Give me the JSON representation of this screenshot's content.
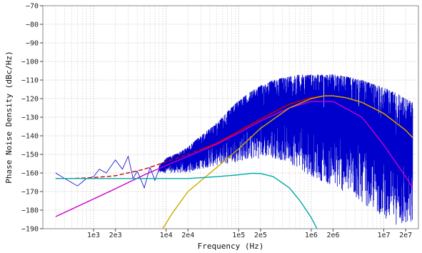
{
  "chart_data": {
    "type": "line",
    "title": "",
    "xlabel": "Frequency (Hz)",
    "ylabel": "Phase Noise Density (dBc/Hz)",
    "x_scale": "log",
    "xlim": [
      200,
      30000000
    ],
    "ylim": [
      -190,
      -70
    ],
    "x_ticks": [
      {
        "value": 1000,
        "label": "1e3"
      },
      {
        "value": 2000,
        "label": "2e3"
      },
      {
        "value": 10000,
        "label": "1e4"
      },
      {
        "value": 20000,
        "label": "2e4"
      },
      {
        "value": 100000,
        "label": "1e5"
      },
      {
        "value": 200000,
        "label": "2e5"
      },
      {
        "value": 1000000,
        "label": "1e6"
      },
      {
        "value": 2000000,
        "label": "2e6"
      },
      {
        "value": 10000000,
        "label": "1e7"
      },
      {
        "value": 20000000,
        "label": "2e7"
      }
    ],
    "y_ticks": [
      -70,
      -80,
      -90,
      -100,
      -110,
      -120,
      -130,
      -140,
      -150,
      -160,
      -170,
      -180,
      -190
    ],
    "y_tick_labels": [
      "−70",
      "−80",
      "−90",
      "−100",
      "−110",
      "−120",
      "−130",
      "−140",
      "−150",
      "−160",
      "−170",
      "−180",
      "−190"
    ],
    "grid": true,
    "series": [
      {
        "color": "#0000cc",
        "style": "noisy-measurement",
        "x": [
          300,
          400,
          600,
          800,
          1000,
          1200,
          1500,
          2000,
          2500,
          3000,
          3500,
          4000,
          5000,
          6000,
          7000,
          8000,
          10000,
          15000,
          20000,
          30000,
          50000,
          70000,
          100000,
          150000,
          200000,
          300000,
          500000,
          700000,
          1000000,
          1500000,
          2000000,
          3000000,
          5000000,
          7000000,
          10000000,
          15000000,
          20000000,
          25000000
        ],
        "center": [
          -160,
          -163,
          -167,
          -163,
          -162,
          -158,
          -160,
          -153,
          -158,
          -151,
          -163,
          -159,
          -168,
          -157,
          -164,
          -158,
          -155,
          -153,
          -151,
          -147,
          -141,
          -137,
          -132,
          -127,
          -124,
          -121,
          -119,
          -118,
          -118,
          -118,
          -118,
          -118,
          -119,
          -120,
          -122,
          -125,
          -128,
          -130
        ],
        "lower": [
          -160,
          -163,
          -167,
          -163,
          -162,
          -158,
          -160,
          -153,
          -158,
          -151,
          -163,
          -159,
          -168,
          -157,
          -164,
          -160,
          -160,
          -160,
          -160,
          -158,
          -156,
          -155,
          -154,
          -153,
          -152,
          -152,
          -155,
          -158,
          -162,
          -165,
          -168,
          -171,
          -176,
          -180,
          -184,
          -188,
          -190,
          -190
        ],
        "upper": [
          -160,
          -163,
          -167,
          -163,
          -162,
          -158,
          -160,
          -153,
          -158,
          -151,
          -163,
          -159,
          -168,
          -157,
          -164,
          -156,
          -152,
          -149,
          -146,
          -140,
          -133,
          -127,
          -121,
          -116,
          -113,
          -110,
          -108,
          -107,
          -107,
          -107,
          -107,
          -108,
          -110,
          -112,
          -114,
          -117,
          -120,
          -122
        ]
      },
      {
        "color": "#cc0000",
        "style": "total",
        "x": [
          300,
          500,
          1000,
          2000,
          5000,
          10000,
          20000,
          50000,
          100000,
          200000,
          500000,
          1000000,
          1500000,
          2000000,
          3000000,
          5000000,
          10000000,
          20000000,
          25000000
        ],
        "values": [
          -163,
          -163,
          -162.5,
          -161.5,
          -158,
          -154,
          -150,
          -144,
          -137.5,
          -131,
          -123,
          -119.5,
          -118.5,
          -118.5,
          -119.5,
          -122,
          -128,
          -137,
          -141
        ]
      },
      {
        "color": "#cc00cc",
        "style": "component",
        "x": [
          300,
          1000,
          2000,
          5000,
          10000,
          20000,
          50000,
          100000,
          200000,
          500000,
          1000000,
          2000000,
          5000000,
          10000000,
          20000000,
          25000000
        ],
        "values": [
          -183.5,
          -174,
          -168.5,
          -161,
          -156,
          -151,
          -144.5,
          -138.5,
          -132,
          -125,
          -121.5,
          -121.5,
          -130,
          -145,
          -162,
          -168
        ]
      },
      {
        "color": "#ccaa00",
        "style": "component",
        "x": [
          9000,
          12000,
          20000,
          50000,
          100000,
          200000,
          500000,
          1000000,
          1500000,
          2000000,
          3000000,
          5000000,
          10000000,
          20000000,
          25000000
        ],
        "values": [
          -190,
          -182,
          -170,
          -157,
          -147,
          -136,
          -125,
          -120,
          -118.5,
          -118.5,
          -119.5,
          -122,
          -128,
          -137,
          -141
        ]
      },
      {
        "color": "#00aaaa",
        "style": "component",
        "x": [
          300,
          1000,
          5000,
          10000,
          20000,
          50000,
          100000,
          150000,
          200000,
          300000,
          500000,
          700000,
          1000000,
          1200000
        ],
        "values": [
          -163,
          -163,
          -163,
          -163,
          -163,
          -162,
          -161,
          -160.2,
          -160.3,
          -162,
          -168,
          -175,
          -184,
          -190
        ]
      }
    ]
  }
}
